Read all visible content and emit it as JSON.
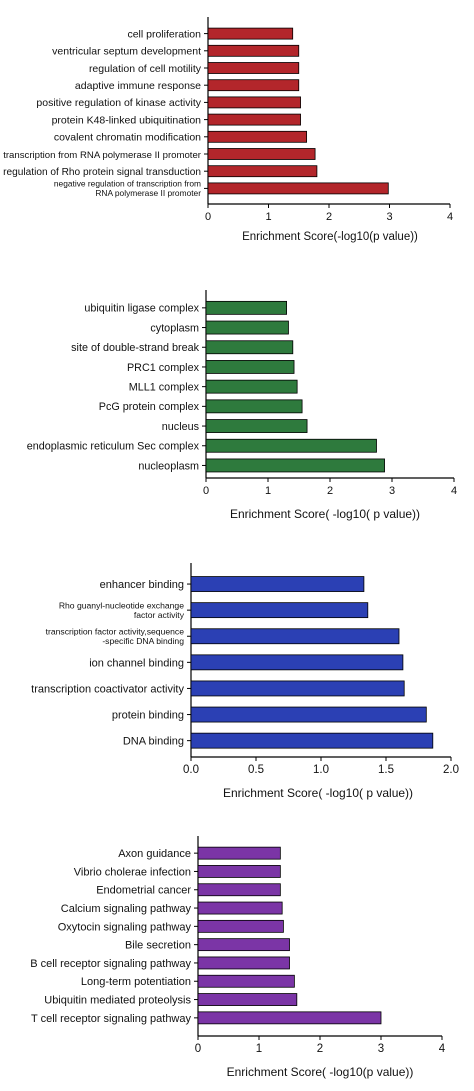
{
  "chart_data": [
    {
      "type": "bar",
      "orientation": "horizontal",
      "color": "#b3262b",
      "xlabel": "Enrichment Score(-log10(p value))",
      "xlim": [
        0,
        4
      ],
      "xticks": [
        "0",
        "1",
        "2",
        "3",
        "4"
      ],
      "categories": [
        [
          "cell proliferation"
        ],
        [
          "ventricular septum development"
        ],
        [
          "regulation of cell motility"
        ],
        [
          "adaptive immune response"
        ],
        [
          "positive regulation of kinase activity"
        ],
        [
          "protein K48-linked ubiquitination"
        ],
        [
          "covalent chromatin modification"
        ],
        [
          "transcription from RNA polymerase II promoter"
        ],
        [
          "regulation of Rho protein signal transduction"
        ],
        [
          "negative regulation of transcription from",
          "RNA polymerase II promoter"
        ]
      ],
      "values": [
        1.4,
        1.5,
        1.5,
        1.5,
        1.53,
        1.53,
        1.63,
        1.77,
        1.8,
        2.98
      ]
    },
    {
      "type": "bar",
      "orientation": "horizontal",
      "color": "#2e7a3d",
      "xlabel": "Enrichment Score( -log10( p value))",
      "xlim": [
        0,
        4
      ],
      "xticks": [
        "0",
        "1",
        "2",
        "3",
        "4"
      ],
      "categories": [
        [
          "ubiquitin ligase complex"
        ],
        [
          "cytoplasm"
        ],
        [
          "site of double-strand break"
        ],
        [
          "PRC1 complex"
        ],
        [
          "MLL1 complex"
        ],
        [
          "PcG protein complex"
        ],
        [
          "nucleus"
        ],
        [
          "endoplasmic reticulum Sec complex"
        ],
        [
          "nucleoplasm"
        ]
      ],
      "values": [
        1.3,
        1.33,
        1.4,
        1.42,
        1.47,
        1.55,
        1.63,
        2.75,
        2.88
      ]
    },
    {
      "type": "bar",
      "orientation": "horizontal",
      "color": "#2b40b4",
      "xlabel": "Enrichment Score( -log10( p value))",
      "xlim": [
        0,
        2
      ],
      "xticks": [
        "0.0",
        "0.5",
        "1.0",
        "1.5",
        "2.0"
      ],
      "categories": [
        [
          "enhancer binding"
        ],
        [
          "Rho guanyl-nucleotide exchange",
          "factor activity"
        ],
        [
          "transcription factor activity,sequence",
          "-specific DNA binding"
        ],
        [
          "ion channel binding"
        ],
        [
          "transcription coactivator activity"
        ],
        [
          "protein binding"
        ],
        [
          "DNA binding"
        ]
      ],
      "values": [
        1.33,
        1.36,
        1.6,
        1.63,
        1.64,
        1.81,
        1.86
      ]
    },
    {
      "type": "bar",
      "orientation": "horizontal",
      "color": "#7b35a6",
      "xlabel": "Enrichment Score( -log10(p value))",
      "xlim": [
        0,
        4
      ],
      "xticks": [
        "0",
        "1",
        "2",
        "3",
        "4"
      ],
      "categories": [
        [
          "Axon guidance"
        ],
        [
          "Vibrio cholerae infection"
        ],
        [
          "Endometrial cancer"
        ],
        [
          "Calcium signaling pathway"
        ],
        [
          "Oxytocin signaling pathway"
        ],
        [
          "Bile secretion"
        ],
        [
          "B cell receptor signaling pathway"
        ],
        [
          "Long-term potentiation"
        ],
        [
          "Ubiquitin mediated proteolysis"
        ],
        [
          "T cell receptor signaling pathway"
        ]
      ],
      "values": [
        1.35,
        1.35,
        1.35,
        1.38,
        1.4,
        1.5,
        1.5,
        1.58,
        1.62,
        3.0
      ]
    }
  ]
}
